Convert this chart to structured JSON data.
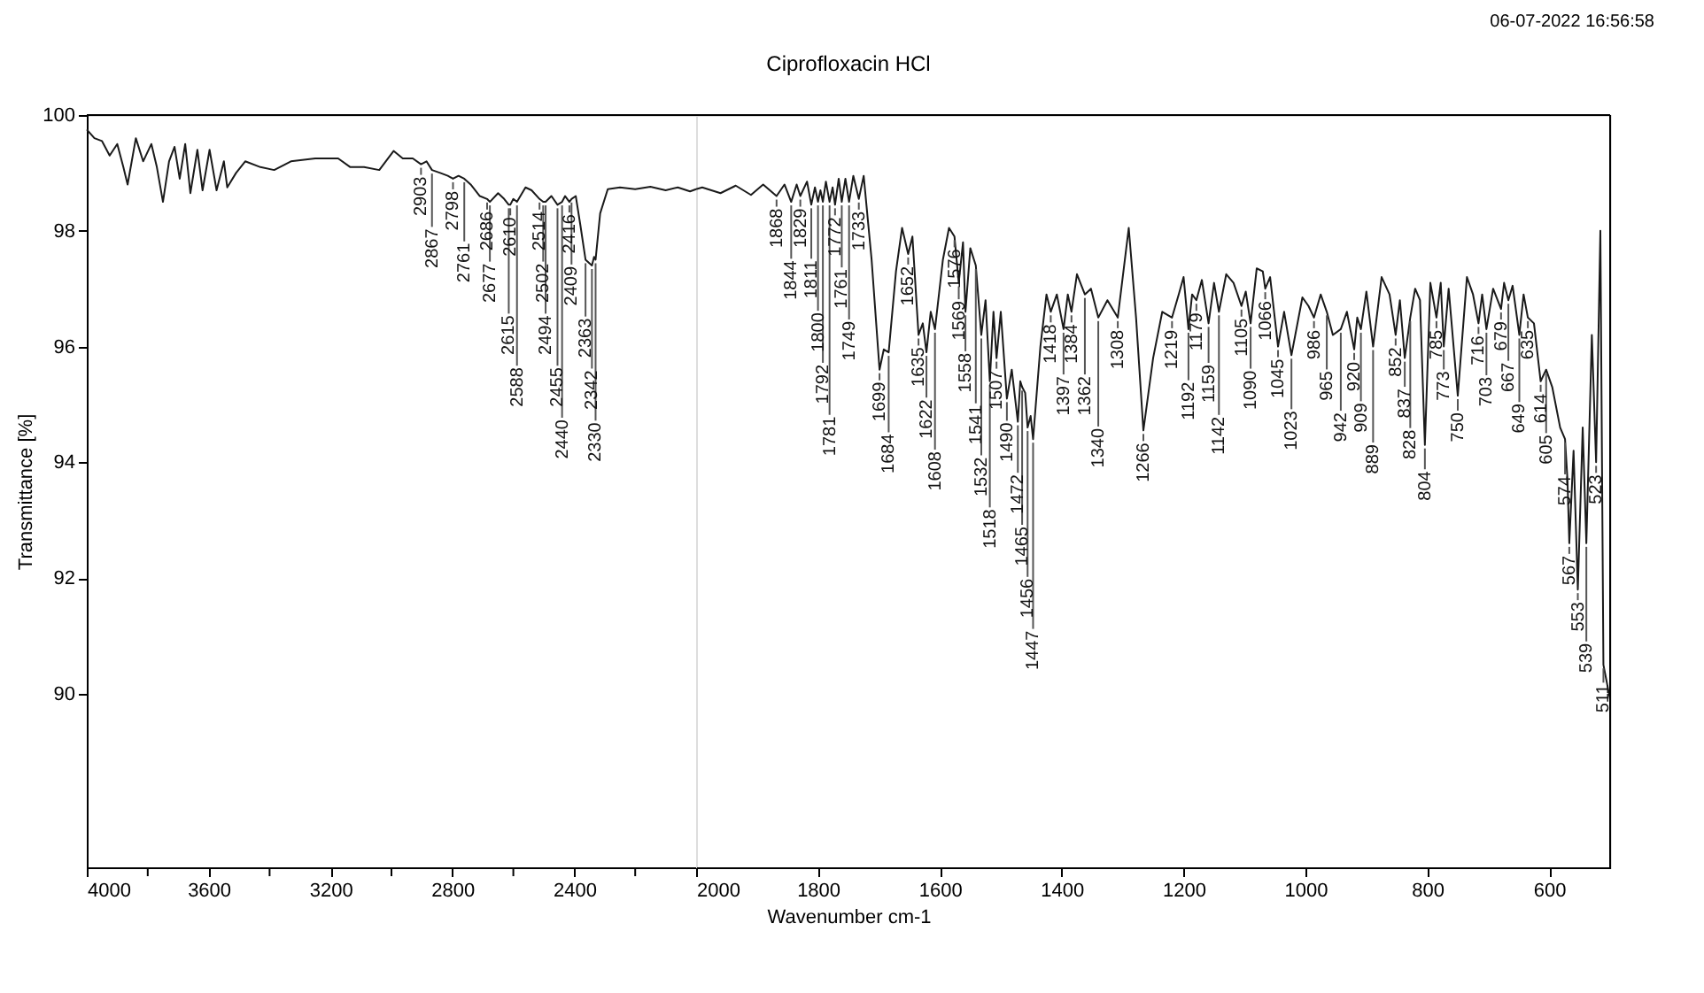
{
  "chart_data": [
    {
      "type": "line",
      "ylabel": "Transmittance [%]",
      "xlim": [
        4000,
        2000
      ],
      "ylim": [
        87,
        100
      ],
      "xticks": [
        4000,
        {
          "value": 3800,
          "label": null
        },
        3600,
        {
          "value": 3400,
          "label": null
        },
        3200,
        {
          "value": 3000,
          "label": null
        },
        2800,
        {
          "value": 2600,
          "label": null
        },
        2400,
        {
          "value": 2200,
          "label": null
        }
      ],
      "yticks": [
        90,
        92,
        94,
        96,
        98,
        100
      ],
      "grid": false,
      "marker": "none",
      "line_style": "solid",
      "series": [
        {
          "color": "#1a1a1a",
          "x": [
            4000,
            3975,
            3950,
            3925,
            3900,
            3880,
            3866,
            3839,
            3815,
            3788,
            3770,
            3750,
            3730,
            3712,
            3695,
            3677,
            3660,
            3637,
            3620,
            3597,
            3574,
            3550,
            3539,
            3510,
            3480,
            3430,
            3385,
            3330,
            3250,
            3175,
            3135,
            3090,
            3040,
            2993,
            2963,
            2930,
            2903,
            2885,
            2867,
            2840,
            2815,
            2798,
            2780,
            2761,
            2740,
            2710,
            2686,
            2677,
            2650,
            2630,
            2615,
            2610,
            2600,
            2588,
            2560,
            2540,
            2514,
            2502,
            2494,
            2475,
            2455,
            2440,
            2430,
            2416,
            2409,
            2395,
            2380,
            2363,
            2342,
            2335,
            2330,
            2315,
            2290,
            2250,
            2200,
            2150,
            2100,
            2060,
            2020,
            2000
          ],
          "values": [
            99.75,
            99.6,
            99.55,
            99.3,
            99.5,
            99.1,
            98.8,
            99.6,
            99.2,
            99.5,
            99.1,
            98.5,
            99.2,
            99.45,
            98.9,
            99.5,
            98.65,
            99.4,
            98.7,
            99.4,
            98.7,
            99.2,
            98.75,
            99.0,
            99.2,
            99.1,
            99.05,
            99.2,
            99.25,
            99.25,
            99.1,
            99.1,
            99.05,
            99.38,
            99.25,
            99.25,
            99.15,
            99.2,
            99.05,
            99.0,
            98.95,
            98.9,
            98.95,
            98.9,
            98.8,
            98.6,
            98.55,
            98.5,
            98.65,
            98.55,
            98.45,
            98.45,
            98.55,
            98.5,
            98.75,
            98.7,
            98.55,
            98.5,
            98.5,
            98.6,
            98.45,
            98.5,
            98.6,
            98.5,
            98.55,
            98.6,
            98.1,
            97.5,
            97.4,
            97.55,
            97.5,
            98.3,
            98.72,
            98.75,
            98.72,
            98.76,
            98.7,
            98.75,
            98.68,
            98.72
          ]
        }
      ],
      "annotations": [
        {
          "text": "2903",
          "x": 2903,
          "y": 99.15
        },
        {
          "text": "2867",
          "x": 2867,
          "y": 99.05
        },
        {
          "text": "2798",
          "x": 2798,
          "y": 98.9
        },
        {
          "text": "2761",
          "x": 2761,
          "y": 98.9
        },
        {
          "text": "2686",
          "x": 2686,
          "y": 98.55
        },
        {
          "text": "2677",
          "x": 2677,
          "y": 98.5
        },
        {
          "text": "2615",
          "x": 2615,
          "y": 98.45
        },
        {
          "text": "2610",
          "x": 2610,
          "y": 98.45
        },
        {
          "text": "2588",
          "x": 2588,
          "y": 98.5
        },
        {
          "text": "2514",
          "x": 2514,
          "y": 98.55
        },
        {
          "text": "2502",
          "x": 2502,
          "y": 98.5
        },
        {
          "text": "2494",
          "x": 2494,
          "y": 98.5
        },
        {
          "text": "2455",
          "x": 2455,
          "y": 98.45
        },
        {
          "text": "2440",
          "x": 2440,
          "y": 98.5
        },
        {
          "text": "2416",
          "x": 2416,
          "y": 98.5
        },
        {
          "text": "2409",
          "x": 2409,
          "y": 98.55
        },
        {
          "text": "2363",
          "x": 2363,
          "y": 97.5
        },
        {
          "text": "2342",
          "x": 2342,
          "y": 97.4
        },
        {
          "text": "2330",
          "x": 2330,
          "y": 97.5
        }
      ]
    },
    {
      "type": "line",
      "tick_labels": "x",
      "title": "Ciprofloxacin HCl",
      "xlabel": "Wavenumber cm-1",
      "xlim": [
        2000,
        500
      ],
      "ylim": [
        87,
        100
      ],
      "xticks": [
        2000,
        1800,
        1600,
        1400,
        1200,
        1000,
        800,
        600
      ],
      "yticks": [
        90,
        92,
        94,
        96,
        98,
        100
      ],
      "grid": false,
      "marker": "none",
      "line_style": "solid",
      "series": [
        {
          "color": "#1a1a1a",
          "x": [
            2000,
            1990,
            1960,
            1935,
            1910,
            1890,
            1868,
            1855,
            1844,
            1835,
            1829,
            1818,
            1811,
            1805,
            1800,
            1796,
            1792,
            1787,
            1781,
            1776,
            1772,
            1766,
            1761,
            1755,
            1749,
            1742,
            1733,
            1725,
            1712,
            1699,
            1692,
            1684,
            1672,
            1662,
            1652,
            1645,
            1635,
            1628,
            1622,
            1615,
            1608,
            1595,
            1585,
            1576,
            1569,
            1562,
            1558,
            1550,
            1541,
            1532,
            1525,
            1518,
            1512,
            1507,
            1500,
            1490,
            1482,
            1472,
            1468,
            1465,
            1460,
            1456,
            1451,
            1447,
            1435,
            1425,
            1418,
            1408,
            1397,
            1390,
            1384,
            1375,
            1362,
            1352,
            1340,
            1325,
            1308,
            1290,
            1278,
            1266,
            1250,
            1235,
            1219,
            1208,
            1200,
            1192,
            1186,
            1179,
            1170,
            1159,
            1150,
            1142,
            1130,
            1118,
            1105,
            1098,
            1090,
            1080,
            1070,
            1066,
            1058,
            1045,
            1035,
            1023,
            1005,
            995,
            986,
            975,
            965,
            955,
            942,
            932,
            920,
            915,
            909,
            900,
            889,
            875,
            862,
            852,
            845,
            837,
            828,
            820,
            812,
            804,
            795,
            785,
            778,
            773,
            765,
            750,
            735,
            725,
            716,
            710,
            703,
            692,
            679,
            674,
            667,
            660,
            649,
            642,
            635,
            625,
            614,
            605,
            595,
            582,
            574,
            570,
            567,
            560,
            553,
            545,
            539,
            530,
            523,
            516,
            511,
            500
          ],
          "values": [
            98.72,
            98.75,
            98.65,
            98.78,
            98.62,
            98.8,
            98.6,
            98.8,
            98.5,
            98.8,
            98.6,
            98.85,
            98.45,
            98.75,
            98.5,
            98.7,
            98.5,
            98.85,
            98.5,
            98.75,
            98.45,
            98.9,
            98.5,
            98.9,
            98.5,
            98.95,
            98.55,
            98.95,
            97.5,
            95.6,
            95.95,
            95.9,
            97.3,
            98.05,
            97.6,
            97.9,
            96.2,
            96.4,
            95.9,
            96.6,
            96.3,
            97.5,
            98.05,
            97.9,
            97.1,
            97.8,
            96.6,
            97.7,
            97.4,
            96.2,
            96.8,
            95.4,
            96.6,
            95.8,
            96.6,
            95.1,
            95.6,
            94.7,
            95.4,
            95.3,
            95.2,
            94.6,
            94.8,
            94.4,
            96.0,
            96.9,
            96.6,
            96.9,
            96.3,
            96.9,
            96.6,
            97.25,
            96.9,
            97.0,
            96.5,
            96.8,
            96.5,
            98.05,
            96.5,
            94.55,
            95.8,
            96.6,
            96.5,
            96.9,
            97.2,
            96.3,
            96.9,
            96.8,
            97.15,
            96.4,
            97.1,
            96.6,
            97.25,
            97.1,
            96.7,
            96.95,
            96.4,
            97.35,
            97.3,
            97.0,
            97.2,
            96.0,
            96.6,
            95.85,
            96.85,
            96.7,
            96.5,
            96.9,
            96.6,
            96.2,
            96.3,
            96.6,
            95.95,
            96.5,
            96.3,
            96.95,
            96.0,
            97.2,
            96.9,
            96.2,
            96.8,
            95.8,
            96.5,
            97.0,
            96.8,
            94.3,
            97.1,
            96.5,
            97.1,
            96.0,
            97.0,
            95.15,
            97.2,
            96.9,
            96.4,
            96.9,
            96.3,
            97.0,
            96.65,
            97.1,
            96.8,
            97.05,
            96.2,
            96.9,
            96.5,
            96.4,
            95.4,
            95.6,
            95.3,
            94.6,
            94.4,
            93.7,
            92.6,
            94.2,
            91.8,
            94.6,
            92.6,
            96.2,
            94.0,
            98.0,
            90.5,
            89.9
          ]
        }
      ],
      "annotations": [
        "06-07-2022  16:56:58",
        {
          "text": "1868",
          "x": 1868,
          "y": 98.6
        },
        {
          "text": "1844",
          "x": 1844,
          "y": 98.5
        },
        {
          "text": "1829",
          "x": 1829,
          "y": 98.6
        },
        {
          "text": "1811",
          "x": 1811,
          "y": 98.45
        },
        {
          "text": "1800",
          "x": 1800,
          "y": 98.5
        },
        {
          "text": "1792",
          "x": 1792,
          "y": 98.5
        },
        {
          "text": "1781",
          "x": 1781,
          "y": 98.5
        },
        {
          "text": "1772",
          "x": 1772,
          "y": 98.45
        },
        {
          "text": "1761",
          "x": 1761,
          "y": 98.5
        },
        {
          "text": "1749",
          "x": 1749,
          "y": 98.5
        },
        {
          "text": "1733",
          "x": 1733,
          "y": 98.55
        },
        {
          "text": "1699",
          "x": 1699,
          "y": 95.6
        },
        {
          "text": "1684",
          "x": 1684,
          "y": 95.9
        },
        {
          "text": "1652",
          "x": 1652,
          "y": 97.6
        },
        {
          "text": "1635",
          "x": 1635,
          "y": 96.2
        },
        {
          "text": "1622",
          "x": 1622,
          "y": 95.9
        },
        {
          "text": "1608",
          "x": 1608,
          "y": 96.3
        },
        {
          "text": "1576",
          "x": 1576,
          "y": 97.9
        },
        {
          "text": "1569",
          "x": 1569,
          "y": 97.1
        },
        {
          "text": "1558",
          "x": 1558,
          "y": 96.6
        },
        {
          "text": "1541",
          "x": 1541,
          "y": 97.4
        },
        {
          "text": "1532",
          "x": 1532,
          "y": 96.2
        },
        {
          "text": "1518",
          "x": 1518,
          "y": 95.4
        },
        {
          "text": "1507",
          "x": 1507,
          "y": 95.8
        },
        {
          "text": "1490",
          "x": 1490,
          "y": 95.1
        },
        {
          "text": "1472",
          "x": 1472,
          "y": 94.7
        },
        {
          "text": "1465",
          "x": 1465,
          "y": 95.3
        },
        {
          "text": "1456",
          "x": 1456,
          "y": 94.6
        },
        {
          "text": "1447",
          "x": 1447,
          "y": 94.4
        },
        {
          "text": "1418",
          "x": 1418,
          "y": 96.6
        },
        {
          "text": "1397",
          "x": 1397,
          "y": 96.3
        },
        {
          "text": "1384",
          "x": 1384,
          "y": 96.6
        },
        {
          "text": "1362",
          "x": 1362,
          "y": 96.9
        },
        {
          "text": "1340",
          "x": 1340,
          "y": 96.5
        },
        {
          "text": "1308",
          "x": 1308,
          "y": 96.5
        },
        {
          "text": "1266",
          "x": 1266,
          "y": 94.55
        },
        {
          "text": "1219",
          "x": 1219,
          "y": 96.5
        },
        {
          "text": "1192",
          "x": 1192,
          "y": 96.3
        },
        {
          "text": "1179",
          "x": 1179,
          "y": 96.8
        },
        {
          "text": "1159",
          "x": 1159,
          "y": 96.4
        },
        {
          "text": "1142",
          "x": 1142,
          "y": 96.6
        },
        {
          "text": "1105",
          "x": 1105,
          "y": 96.7
        },
        {
          "text": "1090",
          "x": 1090,
          "y": 96.4
        },
        {
          "text": "1066",
          "x": 1066,
          "y": 97.0
        },
        {
          "text": "1045",
          "x": 1045,
          "y": 96.0
        },
        {
          "text": "1023",
          "x": 1023,
          "y": 95.85
        },
        {
          "text": "986",
          "x": 986,
          "y": 96.5
        },
        {
          "text": "965",
          "x": 965,
          "y": 96.6
        },
        {
          "text": "942",
          "x": 942,
          "y": 96.3
        },
        {
          "text": "920",
          "x": 920,
          "y": 95.95
        },
        {
          "text": "909",
          "x": 909,
          "y": 96.3
        },
        {
          "text": "889",
          "x": 889,
          "y": 96.0
        },
        {
          "text": "852",
          "x": 852,
          "y": 96.2
        },
        {
          "text": "837",
          "x": 837,
          "y": 95.8
        },
        {
          "text": "828",
          "x": 828,
          "y": 96.5
        },
        {
          "text": "804",
          "x": 804,
          "y": 94.3
        },
        {
          "text": "785",
          "x": 785,
          "y": 96.5
        },
        {
          "text": "773",
          "x": 773,
          "y": 96.0
        },
        {
          "text": "750",
          "x": 750,
          "y": 95.15
        },
        {
          "text": "716",
          "x": 716,
          "y": 96.4
        },
        {
          "text": "703",
          "x": 703,
          "y": 96.3
        },
        {
          "text": "679",
          "x": 679,
          "y": 96.65
        },
        {
          "text": "667",
          "x": 667,
          "y": 96.8
        },
        {
          "text": "649",
          "x": 649,
          "y": 96.2
        },
        {
          "text": "635",
          "x": 635,
          "y": 96.5
        },
        {
          "text": "614",
          "x": 614,
          "y": 95.4
        },
        {
          "text": "605",
          "x": 605,
          "y": 95.6
        },
        {
          "text": "574",
          "x": 574,
          "y": 94.4
        },
        {
          "text": "567",
          "x": 567,
          "y": 92.6
        },
        {
          "text": "553",
          "x": 553,
          "y": 91.8
        },
        {
          "text": "539",
          "x": 539,
          "y": 92.6
        },
        {
          "text": "523",
          "x": 523,
          "y": 94.0
        },
        {
          "text": "511",
          "x": 511,
          "y": 90.5
        }
      ]
    }
  ]
}
